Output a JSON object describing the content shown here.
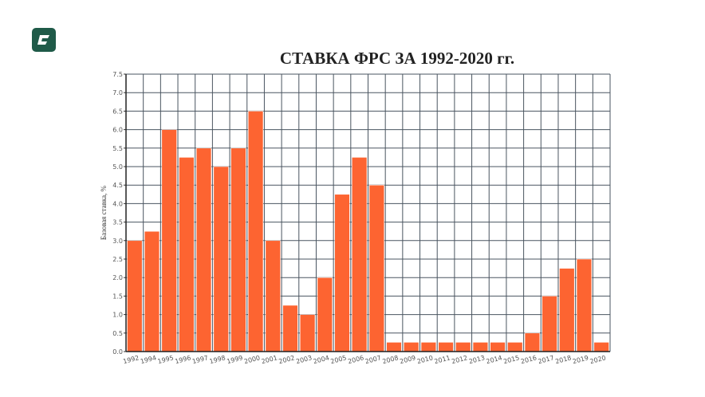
{
  "logo": {
    "color": "#1f5a48"
  },
  "chart_data": {
    "type": "bar",
    "title": "СТАВКА ФРС ЗА 1992-2020 гг.",
    "xlabel": "",
    "ylabel": "Базовая ставка, %",
    "categories": [
      "1992",
      "1994",
      "1995",
      "1996",
      "1997",
      "1998",
      "1999",
      "2000",
      "2001",
      "2002",
      "2003",
      "2004",
      "2005",
      "2006",
      "2007",
      "2008",
      "2009",
      "2010",
      "2011",
      "2012",
      "2013",
      "2014",
      "2015",
      "2016",
      "2017",
      "2018",
      "2019",
      "2020"
    ],
    "values": [
      3.0,
      3.25,
      6.0,
      5.25,
      5.5,
      5.0,
      5.5,
      6.5,
      3.0,
      1.25,
      1.0,
      2.0,
      4.25,
      5.25,
      4.5,
      0.25,
      0.25,
      0.25,
      0.25,
      0.25,
      0.25,
      0.25,
      0.25,
      0.5,
      1.5,
      2.25,
      2.5,
      0.25
    ],
    "ylim": [
      0,
      7.5
    ],
    "yticks": [
      "0.0",
      "0.5",
      "1.0",
      "1.5",
      "2.0",
      "2.5",
      "3.0",
      "3.5",
      "4.0",
      "4.5",
      "5.0",
      "5.5",
      "6.0",
      "6.5",
      "7.0",
      "7.5"
    ],
    "grid": true,
    "bar_color": "#fd6431",
    "grid_color": "#4a5560"
  }
}
